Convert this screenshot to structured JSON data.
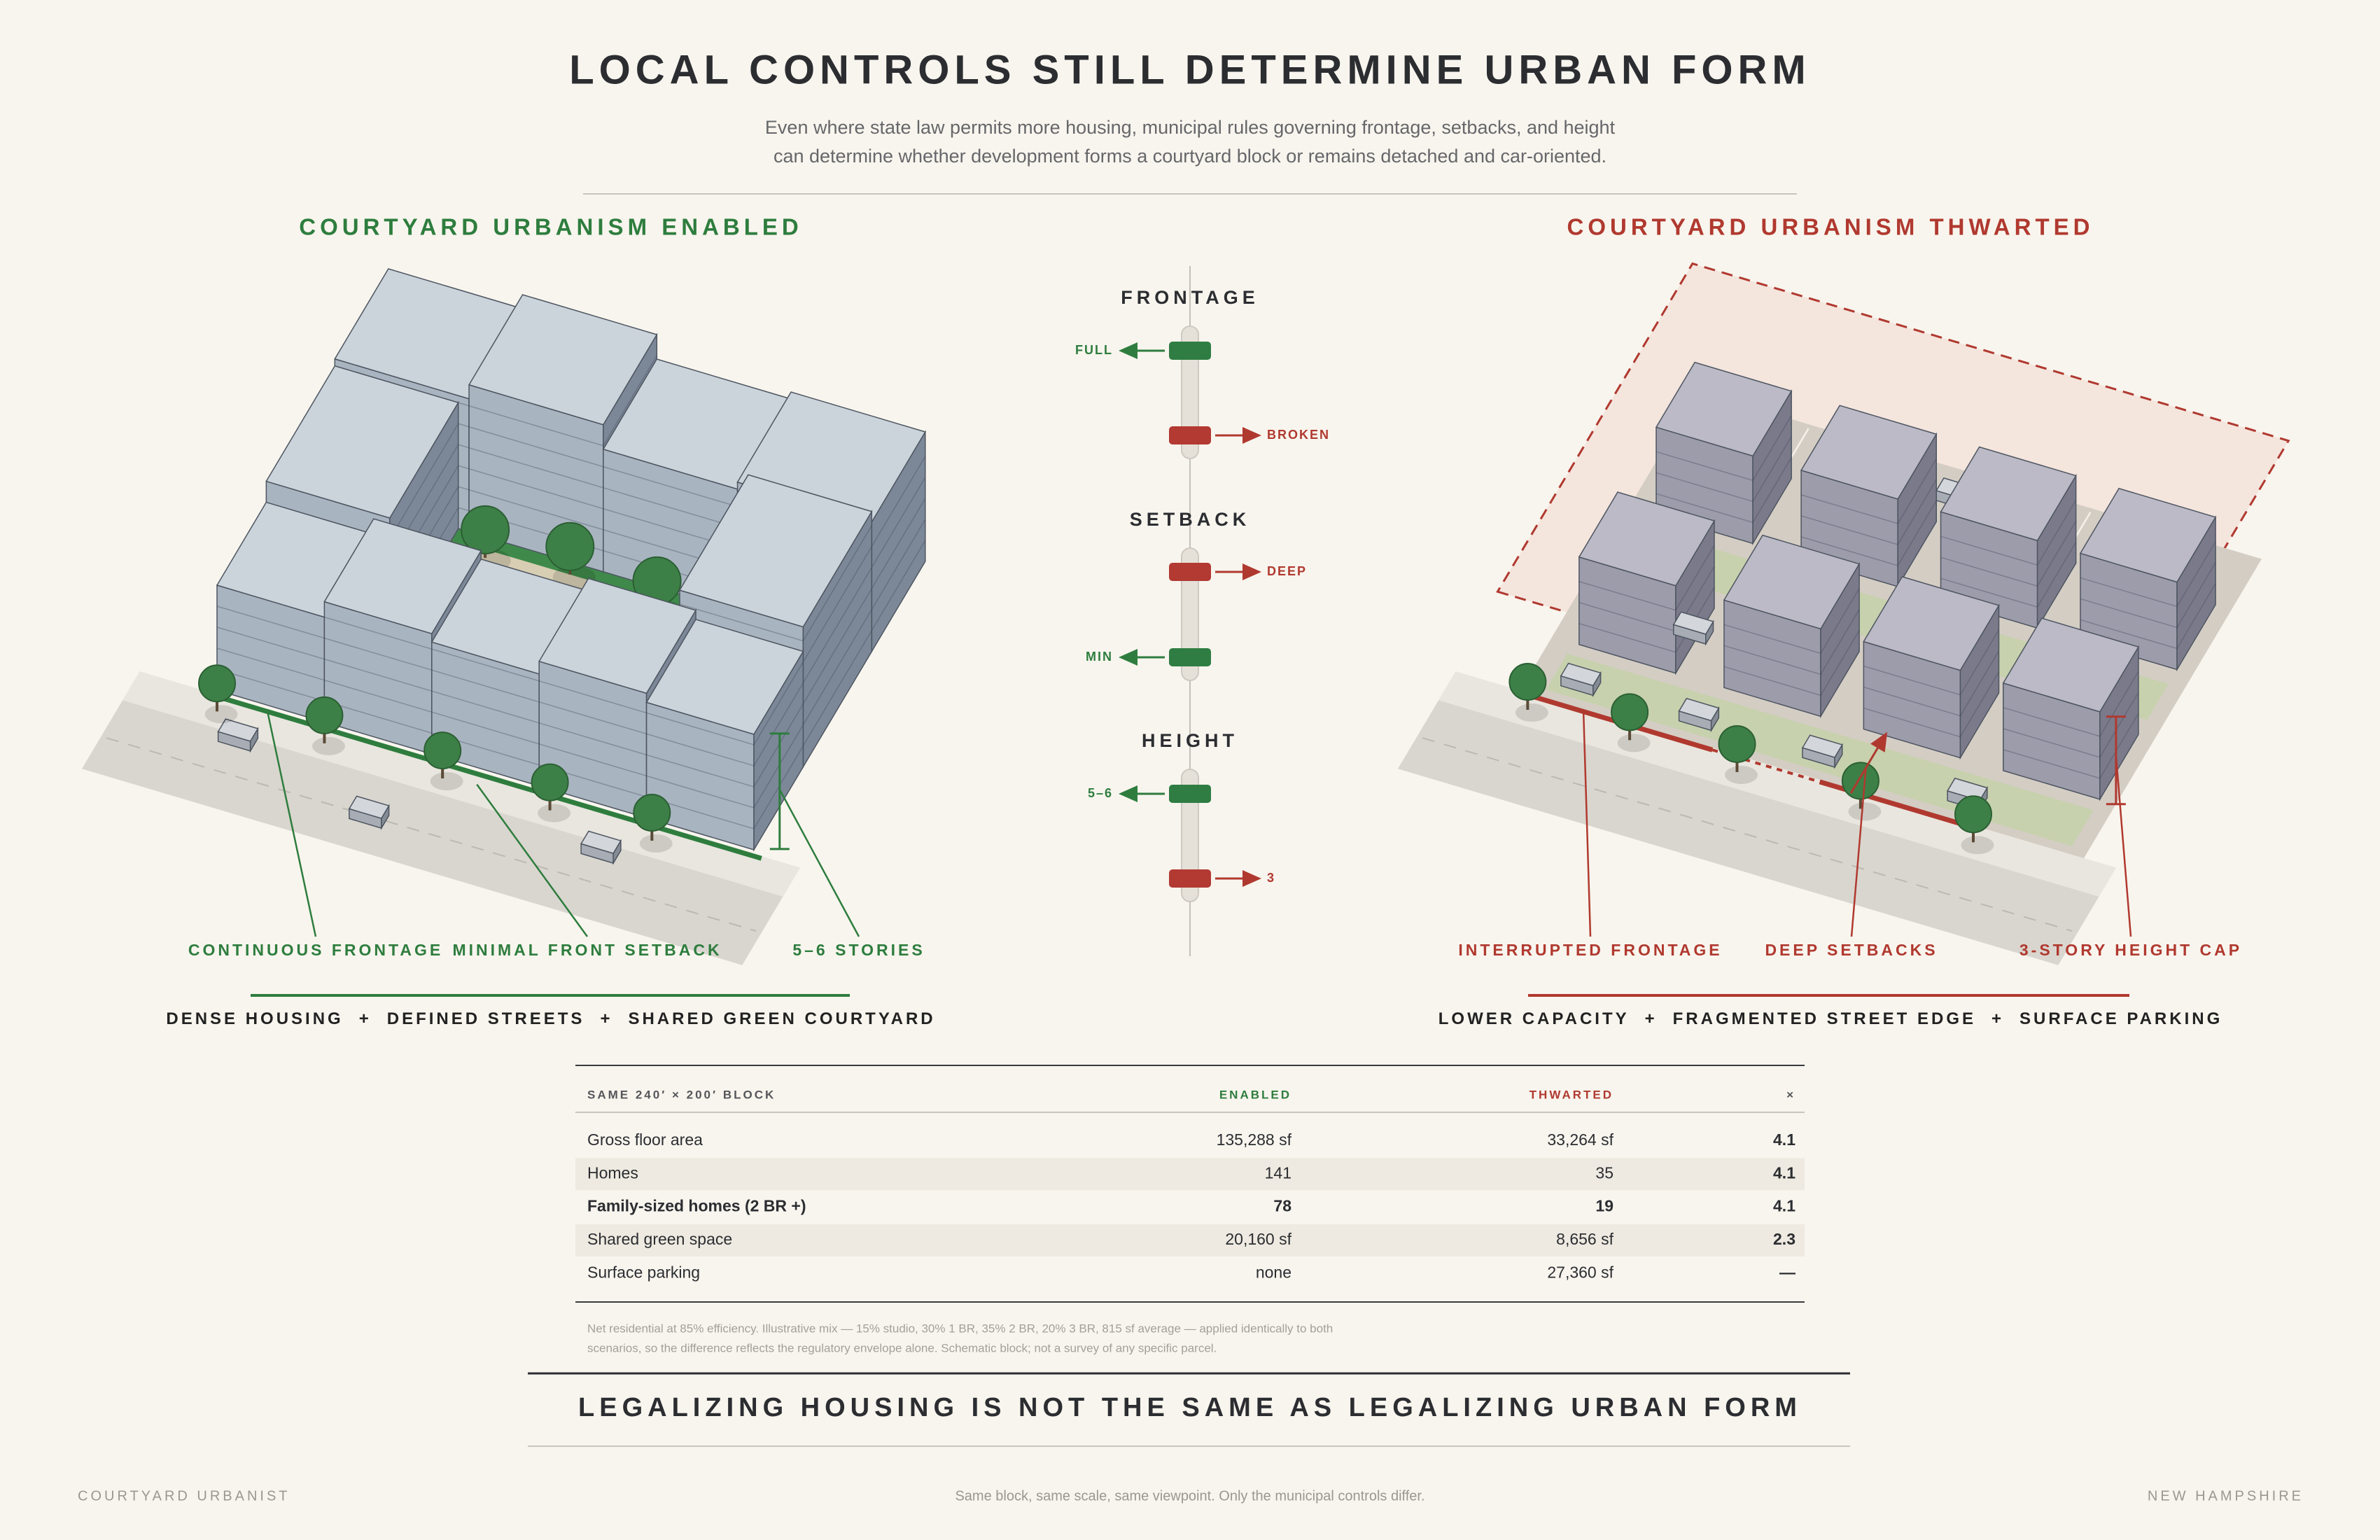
{
  "header": {
    "title": "LOCAL CONTROLS STILL DETERMINE URBAN FORM",
    "subtitle": [
      "Even where state law permits more housing, municipal rules governing frontage, setbacks, and height",
      "can determine whether development forms a courtyard block or remains detached and car-oriented."
    ]
  },
  "panels": [
    {
      "heading": "COURTYARD URBANISM ENABLED",
      "callouts": [
        "CONTINUOUS FRONTAGE",
        "MINIMAL FRONT SETBACK",
        "5–6 STORIES"
      ],
      "summary": [
        "DENSE HOUSING",
        "DEFINED STREETS",
        "SHARED GREEN COURTYARD"
      ],
      "separator": "+"
    },
    {
      "heading": "COURTYARD URBANISM THWARTED",
      "callouts": [
        "INTERRUPTED FRONTAGE",
        "DEEP SETBACKS",
        "3-STORY HEIGHT CAP"
      ],
      "summary": [
        "LOWER CAPACITY",
        "FRAGMENTED STREET EDGE",
        "SURFACE PARKING"
      ],
      "separator": "+"
    }
  ],
  "controls": [
    {
      "label": "FRONTAGE",
      "enabled": "FULL",
      "thwarted": "BROKEN"
    },
    {
      "label": "SETBACK",
      "enabled": "MIN",
      "thwarted": "DEEP"
    },
    {
      "label": "HEIGHT",
      "enabled": "5–6",
      "thwarted": "3"
    }
  ],
  "table": {
    "columns": [
      "SAME 240′ × 200′ BLOCK",
      "ENABLED",
      "THWARTED",
      "×"
    ],
    "rows": [
      [
        "Gross floor area",
        "135,288 sf",
        "33,264 sf",
        "4.1"
      ],
      [
        "Homes",
        "141",
        "35",
        "4.1"
      ],
      [
        "Family-sized homes (2 BR +)",
        "78",
        "19",
        "4.1"
      ],
      [
        "Shared green space",
        "20,160 sf",
        "8,656 sf",
        "2.3"
      ],
      [
        "Surface parking",
        "none",
        "27,360 sf",
        "—"
      ]
    ],
    "footnote": [
      "Net residential at 85% efficiency. Illustrative mix — 15% studio, 30% 1 BR, 35% 2 BR, 20% 3 BR, 815 sf average — applied identically to both",
      "scenarios, so the difference reflects the regulatory envelope alone. Schematic block; not a survey of any specific parcel."
    ]
  },
  "conclusion": "LEGALIZING HOUSING IS NOT THE SAME AS LEGALIZING URBAN FORM",
  "footer": {
    "left": "COURTYARD URBANIST",
    "center": "Same block, same scale, same viewpoint. Only the municipal controls differ.",
    "right": "NEW HAMPSHIRE"
  }
}
